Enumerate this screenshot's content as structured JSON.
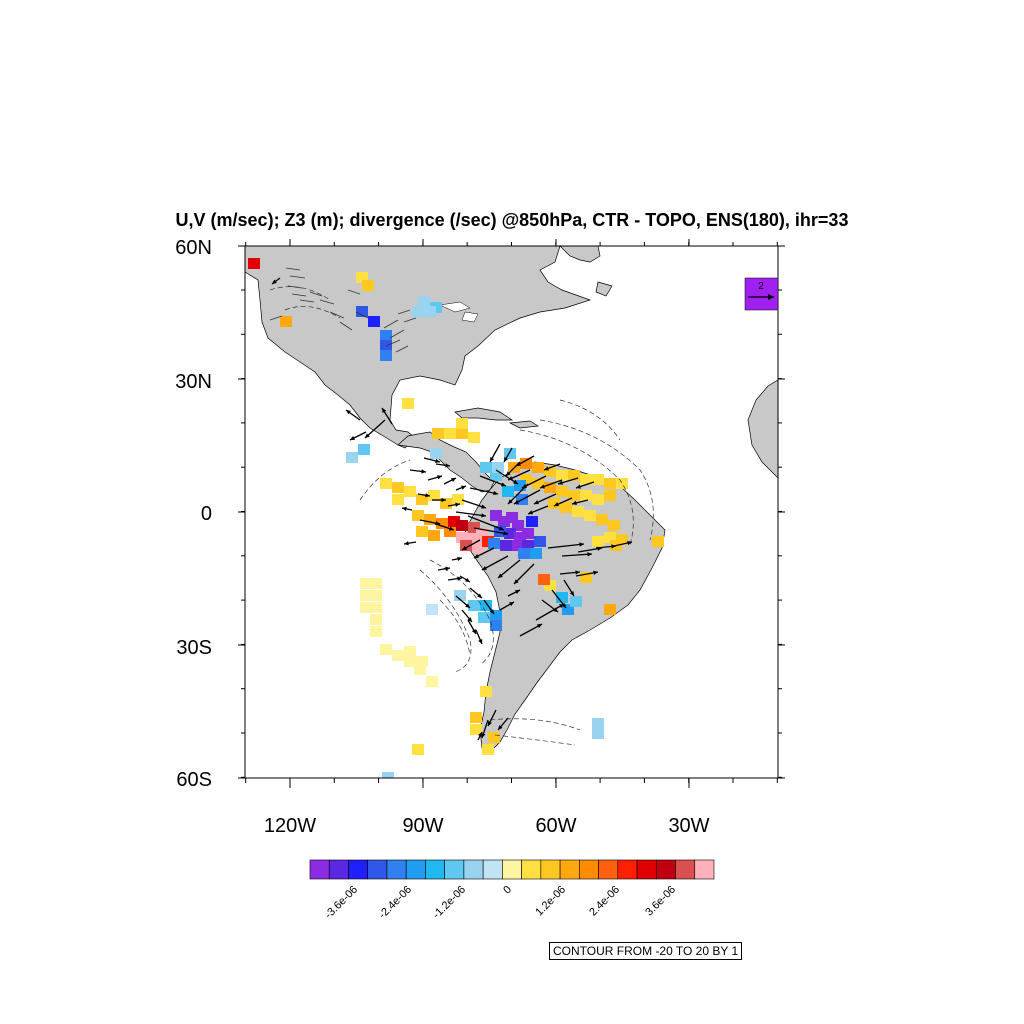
{
  "title": "U,V (m/sec); Z3 (m); divergence (/sec) @850hPa, CTR - TOPO, ENS(180), ihr=33",
  "lat_labels": [
    "60N",
    "30N",
    "0",
    "30S",
    "60S"
  ],
  "lon_labels": [
    "120W",
    "90W",
    "60W",
    "30W"
  ],
  "reference_vector": {
    "label": "2",
    "color": "#a020f0"
  },
  "colorbar": {
    "colors": [
      "#8b2be2",
      "#5a28e0",
      "#2020ff",
      "#3058e8",
      "#3080f0",
      "#209cf0",
      "#20b8f0",
      "#60c8f0",
      "#98d4f0",
      "#c0e4f4",
      "#fff4a0",
      "#ffe040",
      "#ffc820",
      "#ffa810",
      "#ff8c00",
      "#ff6010",
      "#ff2000",
      "#e00000",
      "#c00010",
      "#d85050",
      "#ffb0b8"
    ],
    "labels": [
      "-3.6e-06",
      "-2.4e-06",
      "-1.2e-06",
      "0",
      "1.2e-06",
      "2.4e-06",
      "3.6e-06"
    ]
  },
  "contour_info": "CONTOUR FROM -20 TO 20 BY 1",
  "colors": {
    "land": "#c8c8c8",
    "coast": "#000000"
  }
}
